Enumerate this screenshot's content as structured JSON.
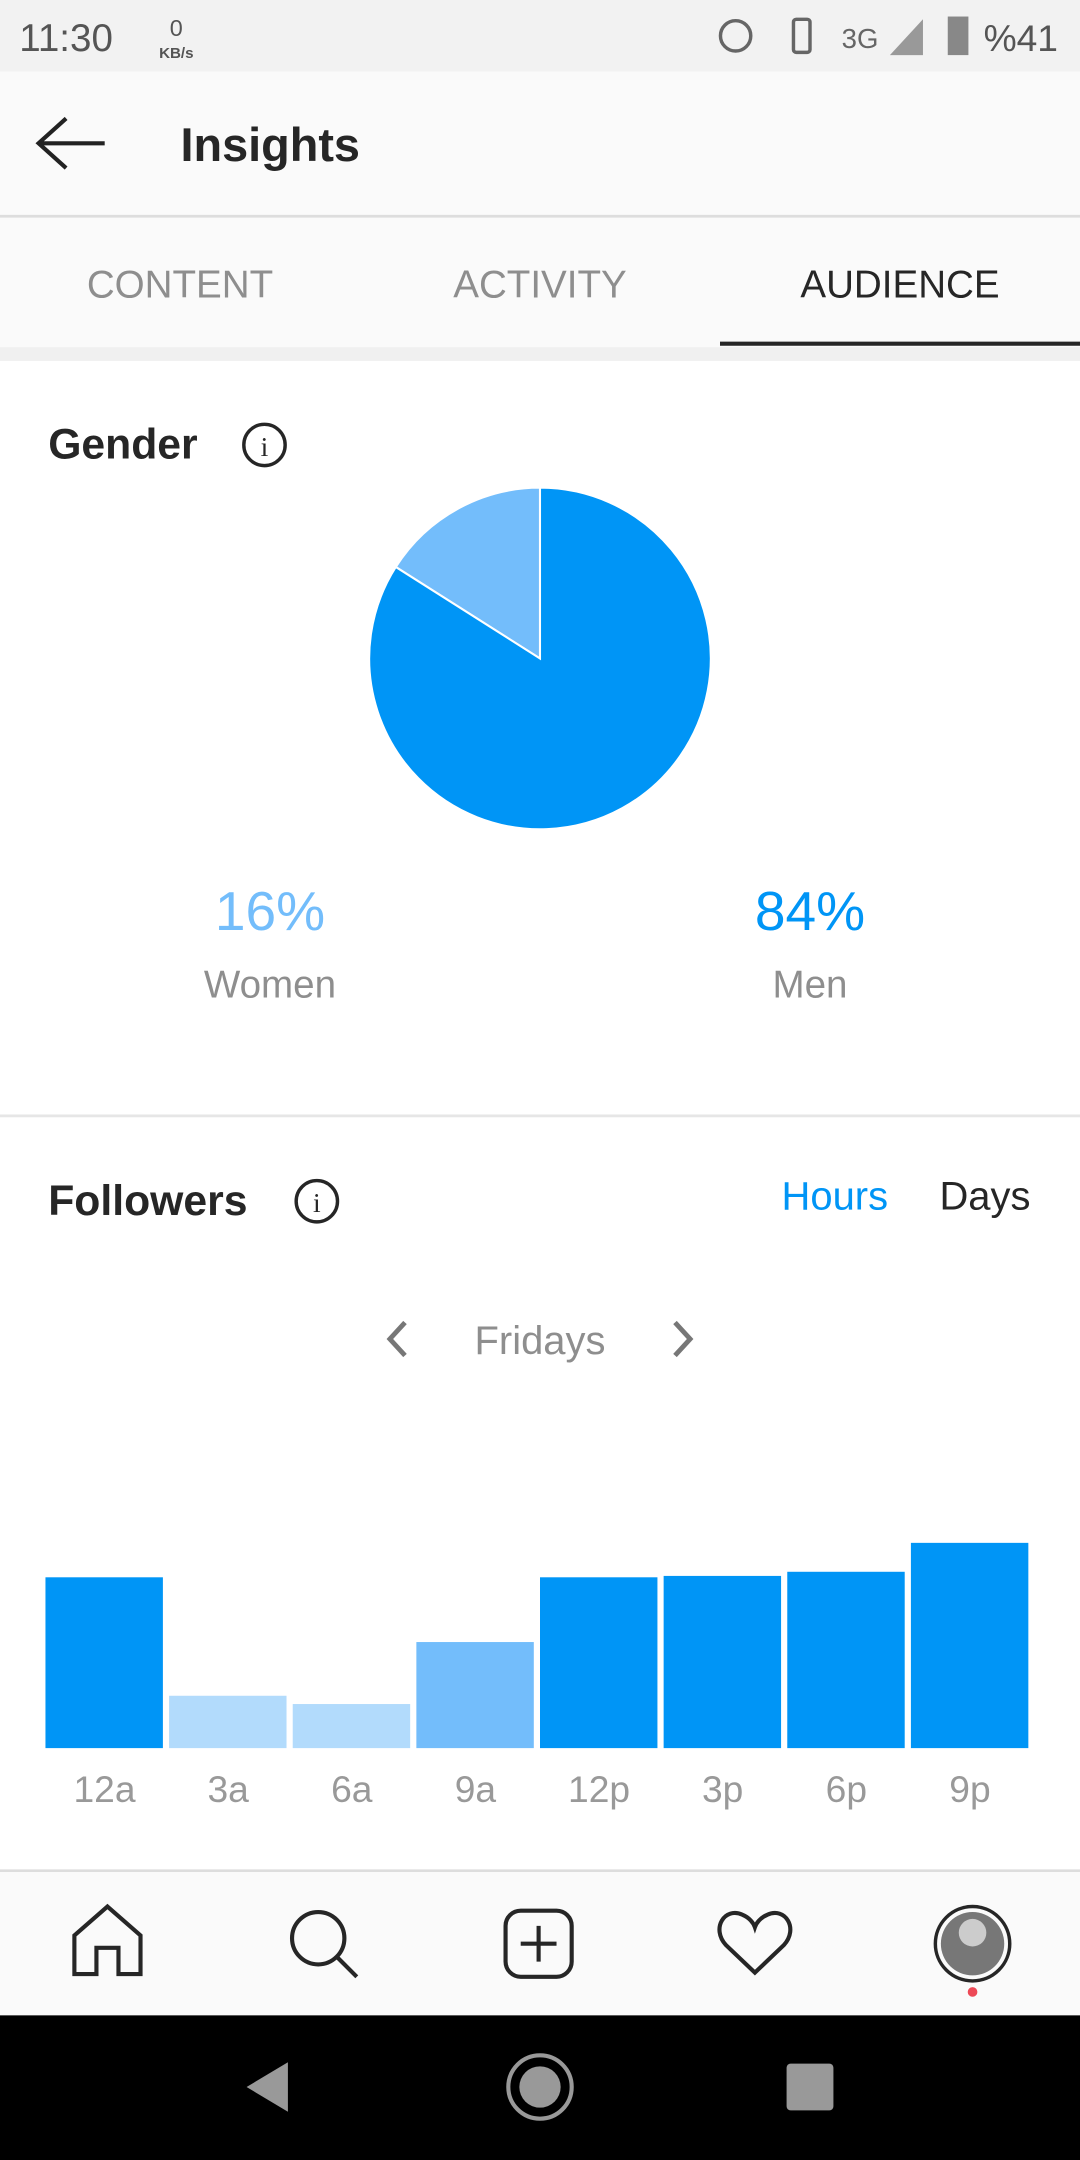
{
  "status_bar": {
    "time": "11:30",
    "speed": "0",
    "speed_unit": "KB/s",
    "network": "3G",
    "battery": "%41"
  },
  "header": {
    "title": "Insights"
  },
  "tabs": {
    "labels": [
      "CONTENT",
      "ACTIVITY",
      "AUDIENCE"
    ],
    "active": 2
  },
  "gender": {
    "title": "Gender",
    "chart_data": {
      "type": "pie",
      "categories": [
        "Women",
        "Men"
      ],
      "values": [
        16,
        84
      ],
      "value_labels": [
        "16%",
        "84%"
      ],
      "colors": [
        "#73bdfb",
        "#0095f6"
      ]
    }
  },
  "followers": {
    "title": "Followers",
    "toggles": [
      "Hours",
      "Days"
    ],
    "active_toggle": 0,
    "day": "Fridays",
    "chart_data": {
      "type": "bar",
      "categories": [
        "12a",
        "3a",
        "6a",
        "9a",
        "12p",
        "3p",
        "6p",
        "9p"
      ],
      "values": [
        124,
        38,
        32,
        77,
        124,
        125,
        128,
        149
      ],
      "colors": [
        "#0095f6",
        "#b2dbfc",
        "#b2dbfc",
        "#73bdfb",
        "#0095f6",
        "#0095f6",
        "#0095f6",
        "#0095f6"
      ]
    }
  }
}
